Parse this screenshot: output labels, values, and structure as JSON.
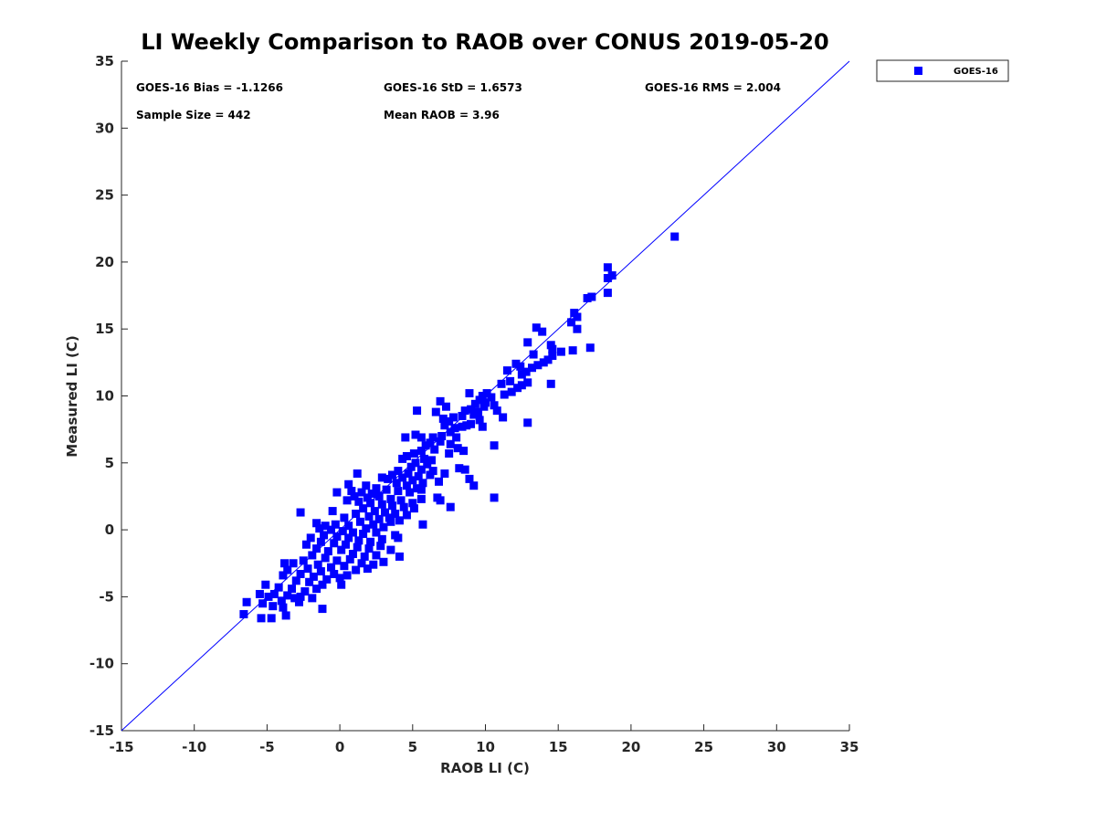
{
  "colors": {
    "series": "#0000ff",
    "axis": "#262626",
    "background": "#ffffff"
  },
  "chart_data": {
    "type": "scatter",
    "title": "LI Weekly Comparison to RAOB over CONUS 2019-05-20",
    "xlabel": "RAOB LI (C)",
    "ylabel": "Measured LI (C)",
    "xlim": [
      -15,
      35
    ],
    "ylim": [
      -15,
      35
    ],
    "xticks": [
      -15,
      -10,
      -5,
      0,
      5,
      10,
      15,
      20,
      25,
      30,
      35
    ],
    "yticks": [
      -15,
      -10,
      -5,
      0,
      5,
      10,
      15,
      20,
      25,
      30,
      35
    ],
    "grid": false,
    "legend": {
      "position": "outside-top-right",
      "entries": [
        "GOES-16"
      ]
    },
    "reference_line": {
      "name": "one-to-one",
      "from": [
        -15,
        -15
      ],
      "to": [
        35,
        35
      ]
    },
    "annotations": [
      "GOES-16 Bias = -1.1266",
      "GOES-16 StD = 1.6573",
      "GOES-16 RMS = 2.004",
      "Sample Size = 442",
      "Mean RAOB = 3.96"
    ],
    "series": [
      {
        "name": "GOES-16",
        "marker": "square",
        "points": [
          [
            23.0,
            21.9
          ],
          [
            18.4,
            19.6
          ],
          [
            18.7,
            19.0
          ],
          [
            18.4,
            18.8
          ],
          [
            18.4,
            17.7
          ],
          [
            17.3,
            17.4
          ],
          [
            17.0,
            17.3
          ],
          [
            17.2,
            13.6
          ],
          [
            16.1,
            16.2
          ],
          [
            16.3,
            15.9
          ],
          [
            15.9,
            15.5
          ],
          [
            16.3,
            15.0
          ],
          [
            16.0,
            13.4
          ],
          [
            13.5,
            15.1
          ],
          [
            13.9,
            14.8
          ],
          [
            12.9,
            14.0
          ],
          [
            14.5,
            13.8
          ],
          [
            14.6,
            13.5
          ],
          [
            13.3,
            13.1
          ],
          [
            15.2,
            13.3
          ],
          [
            14.6,
            13.0
          ],
          [
            14.3,
            12.7
          ],
          [
            14.0,
            12.5
          ],
          [
            13.6,
            12.3
          ],
          [
            13.2,
            12.1
          ],
          [
            12.1,
            12.4
          ],
          [
            12.4,
            12.2
          ],
          [
            11.5,
            11.9
          ],
          [
            12.8,
            11.8
          ],
          [
            12.5,
            11.6
          ],
          [
            11.7,
            11.1
          ],
          [
            12.9,
            11.0
          ],
          [
            11.1,
            10.9
          ],
          [
            14.5,
            10.9
          ],
          [
            12.5,
            10.8
          ],
          [
            12.2,
            10.6
          ],
          [
            11.8,
            10.3
          ],
          [
            11.3,
            10.1
          ],
          [
            10.1,
            10.2
          ],
          [
            9.8,
            10.0
          ],
          [
            10.4,
            9.9
          ],
          [
            9.6,
            9.7
          ],
          [
            10.0,
            9.5
          ],
          [
            8.9,
            10.2
          ],
          [
            9.3,
            9.4
          ],
          [
            10.6,
            9.3
          ],
          [
            9.9,
            9.2
          ],
          [
            9.0,
            9.0
          ],
          [
            8.6,
            8.9
          ],
          [
            9.5,
            8.8
          ],
          [
            10.8,
            8.9
          ],
          [
            9.2,
            8.6
          ],
          [
            8.4,
            8.5
          ],
          [
            7.8,
            8.4
          ],
          [
            9.6,
            8.2
          ],
          [
            7.5,
            8.1
          ],
          [
            11.2,
            8.4
          ],
          [
            9.0,
            7.9
          ],
          [
            7.2,
            7.8
          ],
          [
            8.4,
            7.7
          ],
          [
            9.8,
            7.7
          ],
          [
            12.9,
            8.0
          ],
          [
            7.9,
            7.6
          ],
          [
            6.9,
            9.6
          ],
          [
            7.1,
            8.3
          ],
          [
            6.6,
            8.8
          ],
          [
            7.3,
            9.2
          ],
          [
            8.7,
            7.8
          ],
          [
            7.6,
            7.3
          ],
          [
            7.0,
            7.0
          ],
          [
            8.0,
            6.9
          ],
          [
            6.4,
            6.9
          ],
          [
            5.6,
            6.9
          ],
          [
            4.5,
            6.9
          ],
          [
            6.9,
            6.6
          ],
          [
            6.2,
            6.5
          ],
          [
            7.6,
            6.4
          ],
          [
            5.3,
            8.9
          ],
          [
            5.2,
            7.1
          ],
          [
            5.9,
            6.3
          ],
          [
            6.5,
            6.0
          ],
          [
            8.1,
            6.1
          ],
          [
            5.6,
            5.9
          ],
          [
            5.1,
            5.7
          ],
          [
            7.5,
            5.7
          ],
          [
            8.5,
            5.9
          ],
          [
            10.6,
            6.3
          ],
          [
            4.6,
            5.5
          ],
          [
            5.8,
            5.3
          ],
          [
            6.3,
            5.2
          ],
          [
            4.3,
            5.3
          ],
          [
            5.2,
            5.0
          ],
          [
            6.0,
            4.9
          ],
          [
            4.9,
            4.7
          ],
          [
            5.6,
            4.5
          ],
          [
            6.4,
            4.4
          ],
          [
            8.2,
            4.6
          ],
          [
            8.6,
            4.5
          ],
          [
            4.0,
            4.4
          ],
          [
            4.7,
            4.2
          ],
          [
            5.4,
            4.0
          ],
          [
            6.2,
            4.1
          ],
          [
            7.2,
            4.2
          ],
          [
            3.6,
            4.1
          ],
          [
            4.3,
            3.9
          ],
          [
            5.0,
            3.7
          ],
          [
            5.7,
            3.5
          ],
          [
            6.8,
            3.6
          ],
          [
            8.9,
            3.8
          ],
          [
            3.3,
            3.8
          ],
          [
            3.9,
            3.5
          ],
          [
            4.6,
            3.3
          ],
          [
            5.3,
            3.1
          ],
          [
            9.2,
            3.3
          ],
          [
            1.2,
            4.2
          ],
          [
            2.9,
            3.9
          ],
          [
            0.6,
            3.4
          ],
          [
            1.8,
            3.3
          ],
          [
            2.5,
            3.1
          ],
          [
            3.2,
            3.0
          ],
          [
            4.0,
            2.9
          ],
          [
            4.8,
            2.8
          ],
          [
            5.6,
            3.0
          ],
          [
            0.8,
            2.9
          ],
          [
            1.5,
            2.8
          ],
          [
            2.2,
            2.7
          ],
          [
            -0.2,
            2.8
          ],
          [
            1.0,
            2.5
          ],
          [
            1.9,
            2.4
          ],
          [
            2.7,
            2.5
          ],
          [
            3.5,
            2.3
          ],
          [
            4.2,
            2.2
          ],
          [
            5.0,
            2.0
          ],
          [
            5.6,
            2.3
          ],
          [
            6.7,
            2.4
          ],
          [
            6.9,
            2.2
          ],
          [
            10.6,
            2.4
          ],
          [
            0.5,
            2.2
          ],
          [
            1.3,
            2.1
          ],
          [
            2.1,
            2.0
          ],
          [
            2.9,
            1.9
          ],
          [
            3.6,
            1.8
          ],
          [
            4.4,
            1.7
          ],
          [
            5.1,
            1.6
          ],
          [
            7.6,
            1.7
          ],
          [
            1.6,
            1.6
          ],
          [
            2.4,
            1.4
          ],
          [
            3.1,
            1.3
          ],
          [
            3.8,
            1.2
          ],
          [
            4.6,
            1.1
          ],
          [
            2.0,
            1.0
          ],
          [
            2.7,
            0.8
          ],
          [
            3.4,
            0.9
          ],
          [
            4.1,
            0.7
          ],
          [
            -2.7,
            1.3
          ],
          [
            -0.5,
            1.4
          ],
          [
            1.1,
            1.2
          ],
          [
            0.3,
            0.9
          ],
          [
            1.4,
            0.6
          ],
          [
            2.3,
            0.4
          ],
          [
            3.0,
            0.2
          ],
          [
            -1.6,
            0.5
          ],
          [
            -1.0,
            0.3
          ],
          [
            -0.3,
            0.4
          ],
          [
            0.6,
            0.3
          ],
          [
            1.8,
            0.1
          ],
          [
            3.5,
            0.6
          ],
          [
            5.7,
            0.4
          ],
          [
            -1.4,
            0.1
          ],
          [
            -0.6,
            0.0
          ],
          [
            0.2,
            -0.1
          ],
          [
            0.9,
            -0.2
          ],
          [
            1.6,
            -0.3
          ],
          [
            2.5,
            -0.2
          ],
          [
            3.8,
            -0.4
          ],
          [
            -1.1,
            -0.4
          ],
          [
            -0.2,
            -0.5
          ],
          [
            0.6,
            -0.6
          ],
          [
            1.3,
            -0.8
          ],
          [
            2.1,
            -0.9
          ],
          [
            2.9,
            -0.7
          ],
          [
            4.0,
            -0.6
          ],
          [
            -2.0,
            -0.6
          ],
          [
            -1.3,
            -0.9
          ],
          [
            -0.4,
            -1.0
          ],
          [
            0.4,
            -1.1
          ],
          [
            1.2,
            -1.3
          ],
          [
            2.0,
            -1.4
          ],
          [
            2.8,
            -1.2
          ],
          [
            3.5,
            -1.5
          ],
          [
            -2.3,
            -1.1
          ],
          [
            -1.6,
            -1.4
          ],
          [
            -0.8,
            -1.6
          ],
          [
            0.1,
            -1.5
          ],
          [
            0.9,
            -1.8
          ],
          [
            1.7,
            -2.0
          ],
          [
            2.5,
            -1.9
          ],
          [
            4.1,
            -2.0
          ],
          [
            -1.9,
            -1.9
          ],
          [
            -1.0,
            -2.1
          ],
          [
            -0.2,
            -2.3
          ],
          [
            0.7,
            -2.2
          ],
          [
            1.5,
            -2.5
          ],
          [
            2.3,
            -2.6
          ],
          [
            3.0,
            -2.4
          ],
          [
            -2.5,
            -2.3
          ],
          [
            -1.5,
            -2.6
          ],
          [
            -0.6,
            -2.8
          ],
          [
            0.3,
            -2.7
          ],
          [
            1.1,
            -3.0
          ],
          [
            1.9,
            -2.9
          ],
          [
            -3.2,
            -2.5
          ],
          [
            -2.2,
            -2.9
          ],
          [
            -1.3,
            -3.1
          ],
          [
            -0.4,
            -3.3
          ],
          [
            0.5,
            -3.4
          ],
          [
            -3.6,
            -3.0
          ],
          [
            -2.7,
            -3.3
          ],
          [
            -1.8,
            -3.5
          ],
          [
            -0.9,
            -3.7
          ],
          [
            0.0,
            -3.6
          ],
          [
            -3.9,
            -3.4
          ],
          [
            -3.0,
            -3.8
          ],
          [
            -2.1,
            -3.9
          ],
          [
            -1.2,
            -4.1
          ],
          [
            0.1,
            -4.1
          ],
          [
            -3.8,
            -2.5
          ],
          [
            -5.1,
            -4.1
          ],
          [
            -4.2,
            -4.3
          ],
          [
            -3.3,
            -4.4
          ],
          [
            -2.4,
            -4.6
          ],
          [
            -1.6,
            -4.4
          ],
          [
            -4.5,
            -4.8
          ],
          [
            -3.6,
            -4.9
          ],
          [
            -2.7,
            -5.0
          ],
          [
            -5.5,
            -4.8
          ],
          [
            -4.9,
            -5.0
          ],
          [
            -4.0,
            -5.3
          ],
          [
            -3.1,
            -5.1
          ],
          [
            -1.9,
            -5.1
          ],
          [
            -2.8,
            -5.4
          ],
          [
            -5.3,
            -5.5
          ],
          [
            -6.4,
            -5.4
          ],
          [
            -4.6,
            -5.7
          ],
          [
            -3.9,
            -5.8
          ],
          [
            -1.2,
            -5.9
          ],
          [
            -6.6,
            -6.3
          ],
          [
            -5.4,
            -6.6
          ],
          [
            -4.7,
            -6.6
          ],
          [
            -3.7,
            -6.4
          ]
        ]
      }
    ]
  }
}
